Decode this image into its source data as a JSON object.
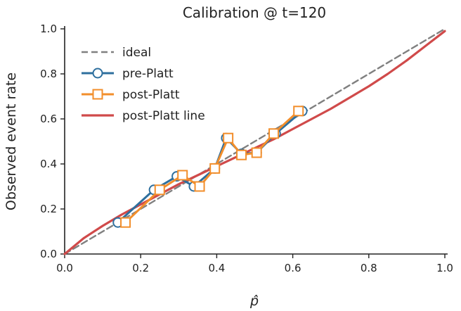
{
  "chart_data": {
    "type": "line",
    "title": "Calibration @ t=120",
    "xlabel": "p̂",
    "ylabel": "Observed event rate",
    "xlim": [
      0.0,
      1.0
    ],
    "ylim": [
      0.0,
      1.0
    ],
    "xticks": [
      "0.0",
      "0.2",
      "0.4",
      "0.6",
      "0.8",
      "1.0"
    ],
    "yticks": [
      "0.0",
      "0.2",
      "0.4",
      "0.6",
      "0.8",
      "1.0"
    ],
    "grid": false,
    "legend_position": "top-left",
    "series": [
      {
        "name": "ideal",
        "style": "dashed",
        "color": "#808080",
        "x": [
          0.0,
          1.0
        ],
        "y": [
          0.0,
          1.0
        ]
      },
      {
        "name": "pre-Platt",
        "style": "line-circle",
        "color": "#2e6f9e",
        "x": [
          0.14,
          0.235,
          0.295,
          0.34,
          0.395,
          0.425,
          0.465,
          0.505,
          0.555,
          0.625
        ],
        "y": [
          0.14,
          0.285,
          0.345,
          0.3,
          0.38,
          0.515,
          0.445,
          0.45,
          0.535,
          0.635
        ]
      },
      {
        "name": "post-Platt",
        "style": "line-square",
        "color": "#f28e2b",
        "x": [
          0.16,
          0.25,
          0.31,
          0.355,
          0.395,
          0.43,
          0.465,
          0.505,
          0.55,
          0.615
        ],
        "y": [
          0.14,
          0.285,
          0.35,
          0.3,
          0.38,
          0.515,
          0.44,
          0.45,
          0.535,
          0.635
        ]
      },
      {
        "name": "post-Platt line",
        "style": "solid",
        "color": "#d04a4a",
        "x": [
          0.0,
          0.05,
          0.1,
          0.15,
          0.2,
          0.25,
          0.3,
          0.35,
          0.4,
          0.45,
          0.5,
          0.55,
          0.6,
          0.65,
          0.7,
          0.75,
          0.8,
          0.85,
          0.9,
          0.95,
          1.0
        ],
        "y": [
          0.0,
          0.07,
          0.125,
          0.175,
          0.22,
          0.265,
          0.31,
          0.35,
          0.39,
          0.43,
          0.47,
          0.51,
          0.555,
          0.6,
          0.645,
          0.695,
          0.745,
          0.8,
          0.86,
          0.925,
          0.99
        ]
      }
    ]
  }
}
